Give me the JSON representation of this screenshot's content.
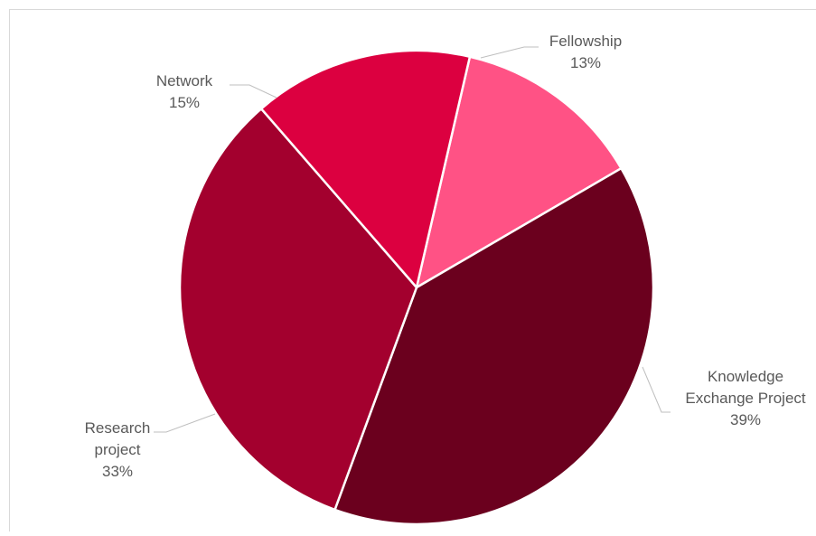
{
  "chart_data": {
    "type": "pie",
    "title": "",
    "categories": [
      "Fellowship",
      "Knowledge Exchange Project",
      "Research project",
      "Network"
    ],
    "values": [
      13,
      39,
      33,
      15
    ],
    "percent_labels": [
      "13%",
      "39%",
      "33%",
      "15%"
    ],
    "label_lines": [
      [
        "Fellowship"
      ],
      [
        "Knowledge",
        "Exchange Project"
      ],
      [
        "Research",
        "project"
      ],
      [
        "Network"
      ]
    ],
    "colors": [
      "#ff5285",
      "#6b001e",
      "#a3002e",
      "#dc0040"
    ],
    "start_angle_deg": 13,
    "legend": "none"
  }
}
